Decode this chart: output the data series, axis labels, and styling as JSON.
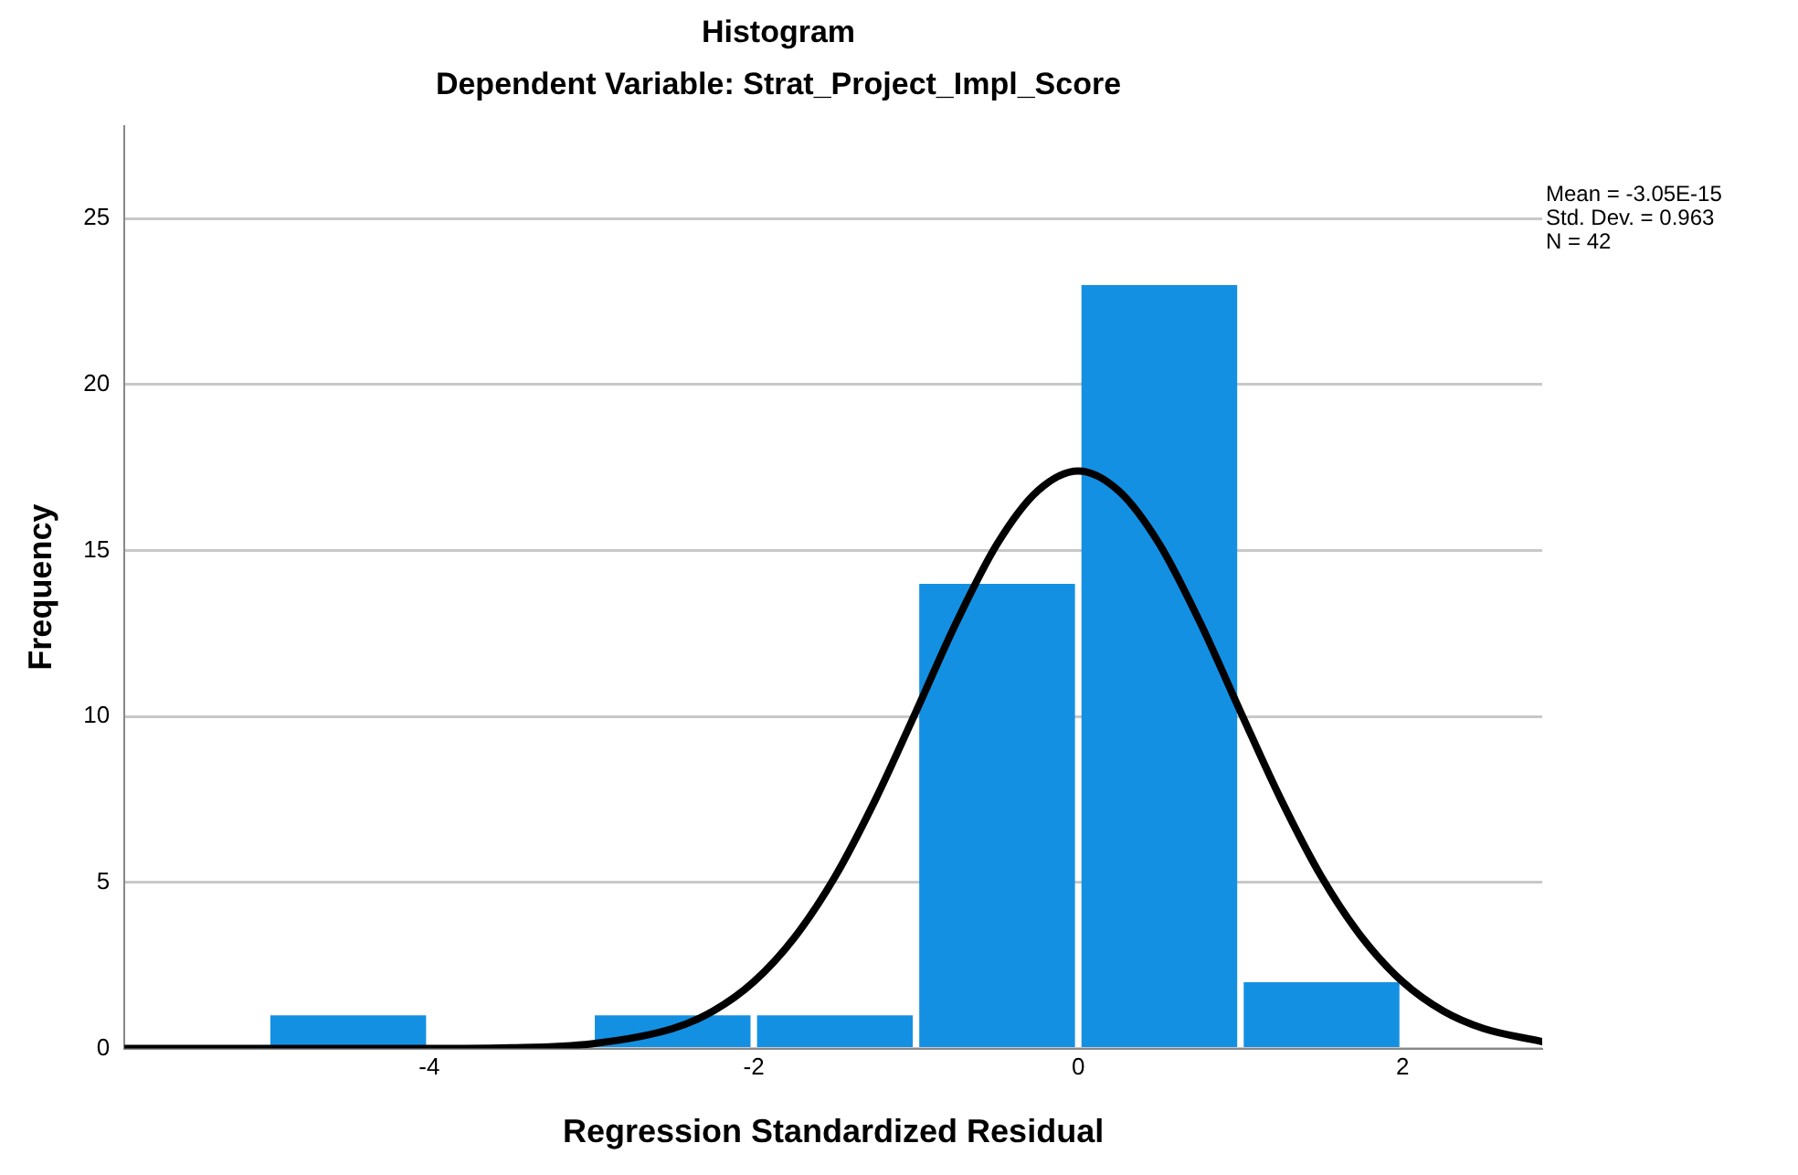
{
  "chart_data": {
    "type": "histogram",
    "title": "Histogram",
    "subtitle": "Dependent Variable: Strat_Project_Impl_Score",
    "xlabel": "Regression Standardized Residual",
    "ylabel": "Frequency",
    "bins": [
      -5,
      -4,
      -3,
      -2,
      -1,
      0,
      1,
      2
    ],
    "values": [
      1,
      0,
      1,
      1,
      14,
      23,
      2
    ],
    "color": "#1490e3",
    "series": [
      {
        "type": "line",
        "color": "#000000",
        "x": [
          -5.88,
          -4,
          -3.5,
          -3,
          -2.5,
          -2.25,
          -2,
          -1.75,
          -1.5,
          -1.25,
          -1,
          -0.75,
          -0.5,
          -0.25,
          0,
          0.25,
          0.5,
          0.75,
          1,
          1.25,
          1.5,
          1.75,
          2,
          2.25,
          2.5,
          2.86
        ],
        "values": [
          0,
          0,
          0.02,
          0.14,
          0.6,
          1.13,
          2.01,
          3.34,
          5.17,
          7.5,
          10.15,
          12.85,
          15.2,
          16.8,
          17.4,
          16.8,
          15.2,
          12.85,
          10.15,
          7.5,
          5.17,
          3.34,
          2.01,
          1.13,
          0.6,
          0.21
        ]
      }
    ],
    "xlim": [
      -5.88,
      2.86
    ],
    "xticks": [
      -4,
      -2,
      0,
      2
    ],
    "ylim": [
      0,
      27.8
    ],
    "yticks": [
      0,
      5,
      10,
      15,
      20,
      25
    ],
    "grid": "y",
    "legend": false,
    "marker": "none",
    "annotations": [
      "Mean = -3.05E-15",
      "Std. Dev. = 0.963",
      "N = 42"
    ]
  }
}
